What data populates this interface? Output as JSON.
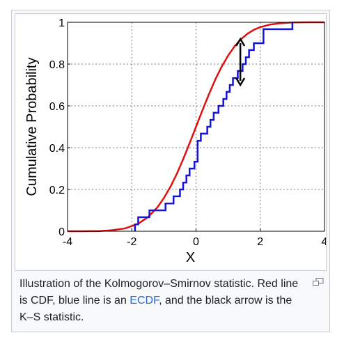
{
  "chart_data": {
    "type": "line",
    "title": "",
    "xlabel": "X",
    "ylabel": "Cumulative Probability",
    "xlim": [
      -4,
      4
    ],
    "ylim": [
      0,
      1
    ],
    "xticks": [
      -4,
      -2,
      0,
      2,
      4
    ],
    "yticks": [
      0,
      0.2,
      0.4,
      0.6,
      0.8,
      1
    ],
    "grid": true,
    "series": [
      {
        "kind": "cdf",
        "color": "#e01010",
        "mean": 0,
        "sd": 1,
        "x": [
          -4.0,
          -3.5,
          -3.0,
          -2.6,
          -2.2,
          -1.8,
          -1.5,
          -1.2,
          -1.0,
          -0.8,
          -0.6,
          -0.4,
          -0.2,
          0.0,
          0.2,
          0.4,
          0.6,
          0.8,
          1.0,
          1.2,
          1.4,
          1.6,
          1.8,
          2.0,
          2.3,
          2.6,
          3.0,
          3.5,
          4.0
        ],
        "y": [
          0.0,
          0.0,
          0.001,
          0.005,
          0.014,
          0.036,
          0.067,
          0.115,
          0.159,
          0.212,
          0.274,
          0.345,
          0.421,
          0.5,
          0.579,
          0.655,
          0.726,
          0.788,
          0.841,
          0.885,
          0.919,
          0.945,
          0.964,
          0.977,
          0.989,
          0.995,
          0.999,
          1.0,
          1.0
        ]
      },
      {
        "kind": "ecdf",
        "color": "#1414d8",
        "steps_x": [
          -1.9,
          -1.8,
          -1.45,
          -0.95,
          -0.7,
          -0.5,
          -0.4,
          -0.3,
          -0.2,
          -0.05,
          0.05,
          0.15,
          0.35,
          0.45,
          0.55,
          0.7,
          0.85,
          0.95,
          1.05,
          1.15,
          1.3,
          1.45,
          1.55,
          1.65,
          1.8,
          2.1,
          3.0
        ],
        "steps_y": [
          0.033,
          0.067,
          0.1,
          0.133,
          0.167,
          0.2,
          0.233,
          0.267,
          0.3,
          0.333,
          0.433,
          0.467,
          0.5,
          0.533,
          0.567,
          0.6,
          0.633,
          0.667,
          0.7,
          0.733,
          0.767,
          0.8,
          0.833,
          0.867,
          0.9,
          0.967,
          1.0
        ]
      }
    ],
    "annotation": {
      "kind": "double-arrow",
      "color": "#000000",
      "x": 1.38,
      "y_from": 0.7,
      "y_to": 0.92
    }
  },
  "caption": {
    "part1": "Illustration of the Kolmogorov–Smirnov statistic. Red line is CDF, blue line is an ",
    "link": "ECDF",
    "part2": ", and the black arrow is the K–S statistic."
  },
  "icons": {
    "enlarge": "enlarge-icon"
  }
}
